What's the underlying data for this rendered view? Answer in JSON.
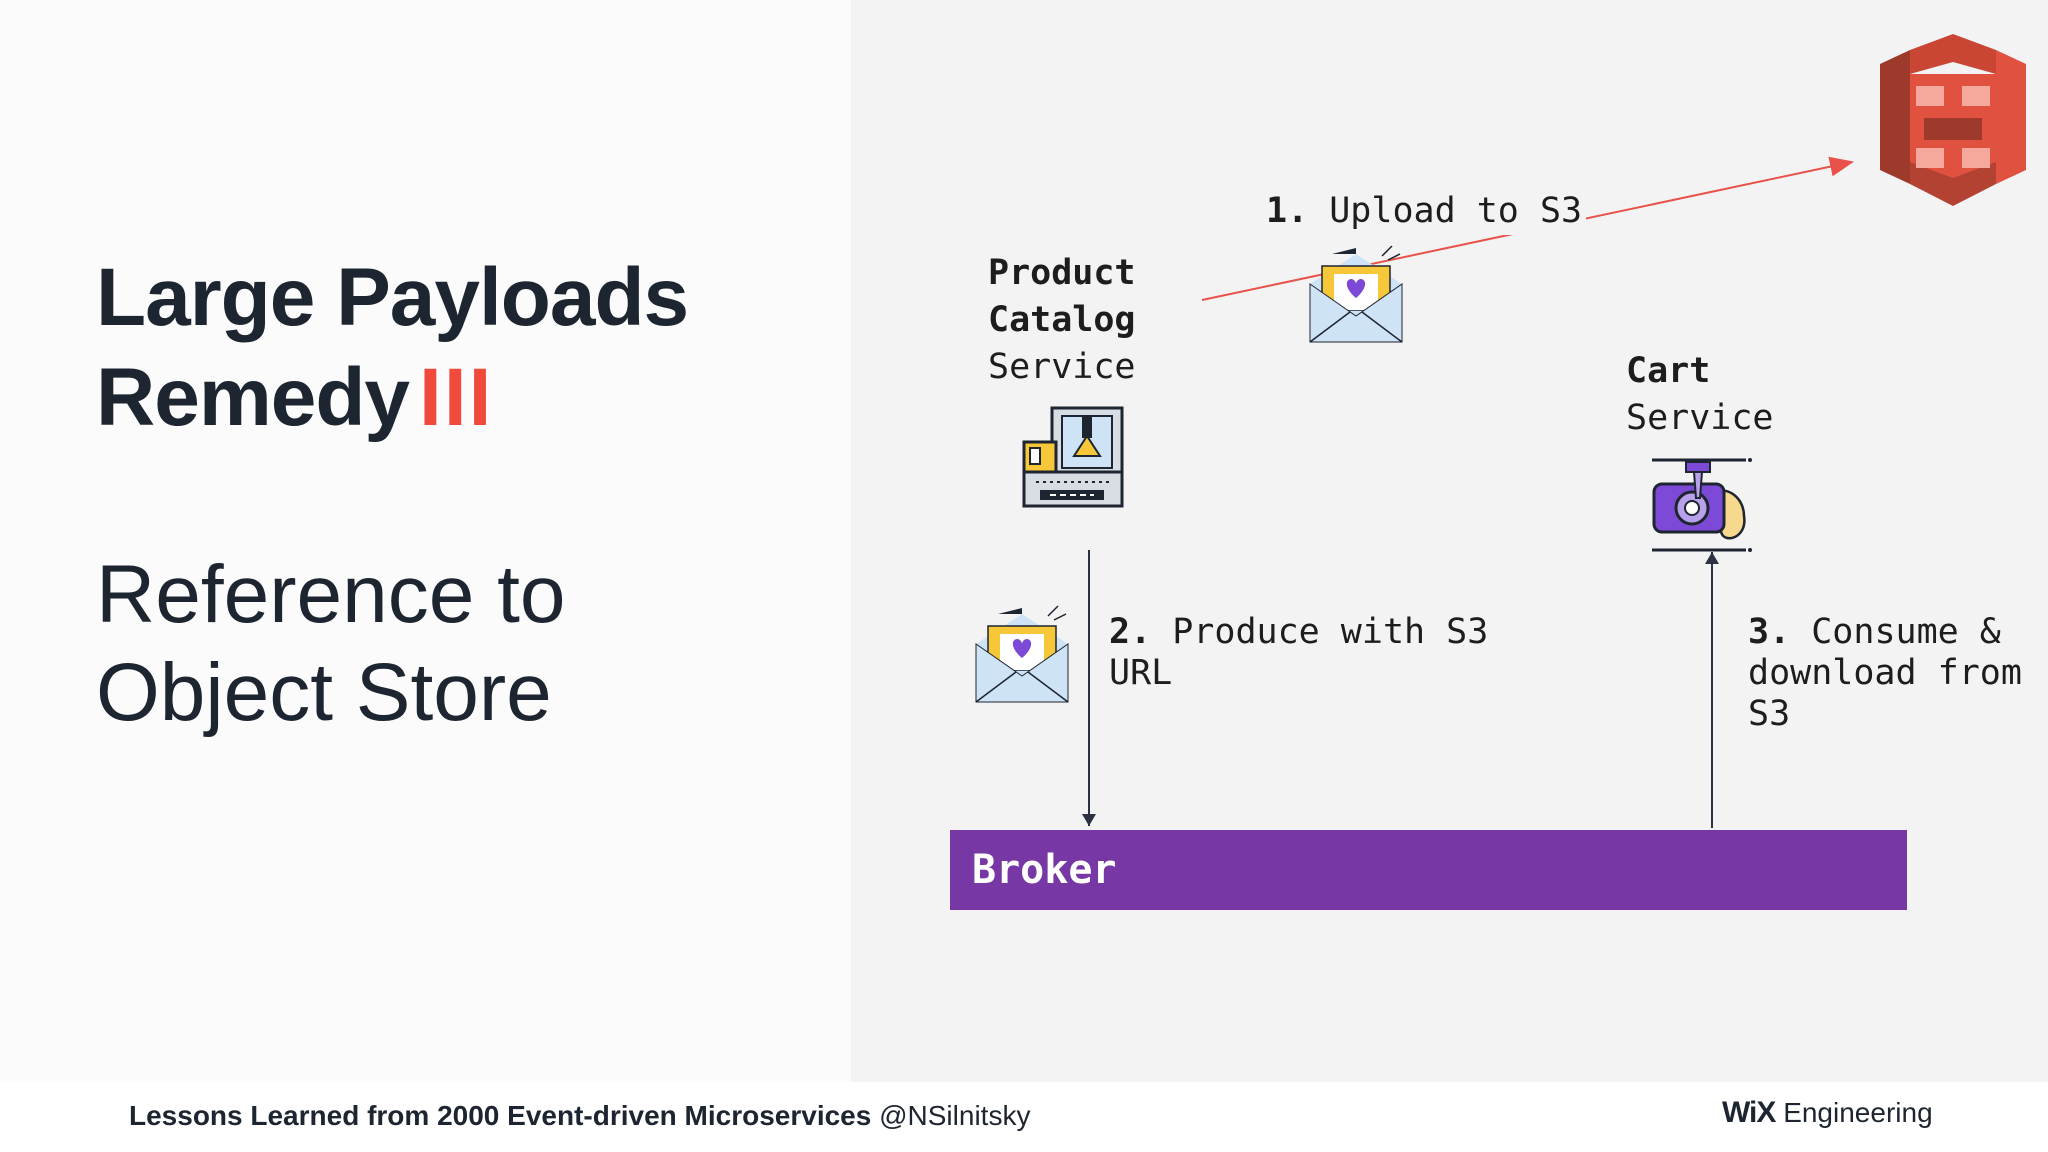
{
  "slide": {
    "title_line1": "Large Payloads",
    "title_line2": "Remedy",
    "title_numeral": "III",
    "subtitle_line1": "Reference to",
    "subtitle_line2": "Object Store"
  },
  "diagram": {
    "product_catalog": {
      "line1": "Product",
      "line2": "Catalog",
      "line3": "Service"
    },
    "cart": {
      "line1": "Cart",
      "line2": "Service"
    },
    "step1": {
      "num": "1.",
      "text": "Upload to S3"
    },
    "step2": {
      "num": "2.",
      "text_line1": "Produce with S3",
      "text_line2": "URL"
    },
    "step3": {
      "num": "3.",
      "text_line1": "Consume &",
      "text_line2": "download from",
      "text_line3": "S3"
    },
    "broker_label": "Broker"
  },
  "footer": {
    "talk_title": "Lessons Learned from 2000 Event-driven Microservices",
    "handle": "@NSilnitsky",
    "brand_logo": "WiX",
    "brand_suffix": "Engineering"
  },
  "colors": {
    "accent_red": "#f04a3d",
    "broker_purple": "#7738a6",
    "s3_red": "#e0523f",
    "arrow_red": "#e8524a"
  },
  "icons": [
    "s3-bucket-icon",
    "envelope-heart-icon",
    "factory-machine-icon",
    "cart-machine-icon"
  ]
}
